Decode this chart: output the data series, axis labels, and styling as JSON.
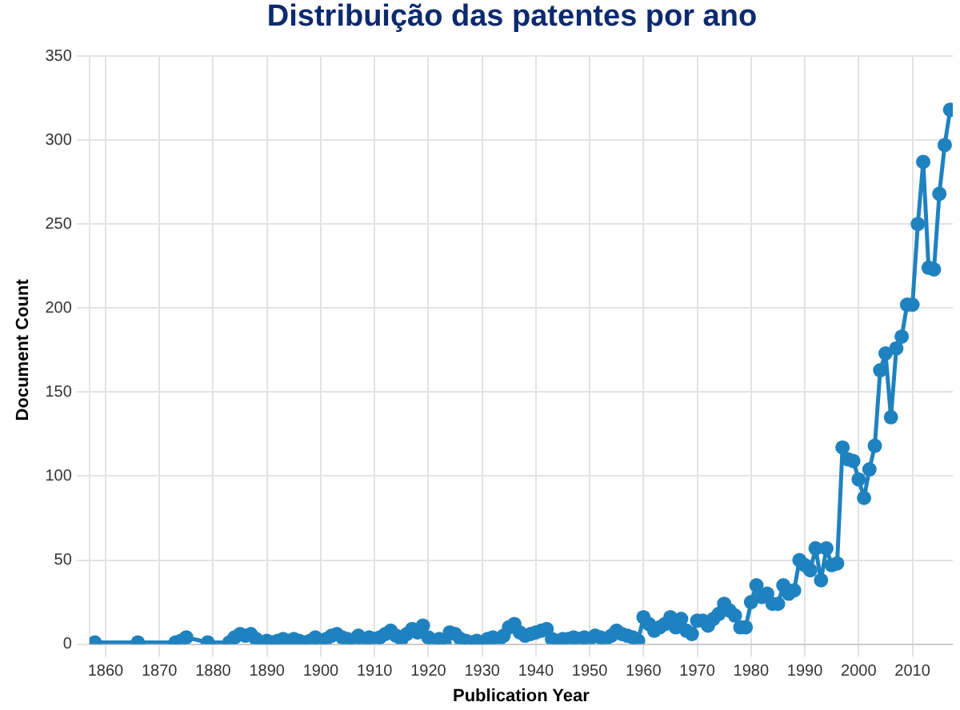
{
  "chart_data": {
    "type": "line",
    "title": "Distribuição das patentes por ano",
    "xlabel": "Publication Year",
    "ylabel": "Document Count",
    "x": [
      1858,
      1866,
      1873,
      1874,
      1875,
      1879,
      1883,
      1884,
      1885,
      1886,
      1887,
      1888,
      1889,
      1890,
      1891,
      1892,
      1893,
      1894,
      1895,
      1896,
      1897,
      1898,
      1899,
      1900,
      1901,
      1902,
      1903,
      1904,
      1905,
      1906,
      1907,
      1908,
      1909,
      1910,
      1911,
      1912,
      1913,
      1914,
      1915,
      1916,
      1917,
      1918,
      1919,
      1920,
      1921,
      1922,
      1923,
      1924,
      1925,
      1926,
      1927,
      1928,
      1929,
      1930,
      1931,
      1932,
      1933,
      1934,
      1935,
      1936,
      1937,
      1938,
      1939,
      1940,
      1941,
      1942,
      1943,
      1944,
      1945,
      1946,
      1947,
      1948,
      1949,
      1950,
      1951,
      1952,
      1953,
      1954,
      1955,
      1956,
      1957,
      1958,
      1959,
      1960,
      1961,
      1962,
      1963,
      1964,
      1965,
      1966,
      1967,
      1968,
      1969,
      1970,
      1971,
      1972,
      1973,
      1974,
      1975,
      1976,
      1977,
      1978,
      1979,
      1980,
      1981,
      1982,
      1983,
      1984,
      1985,
      1986,
      1987,
      1988,
      1989,
      1990,
      1991,
      1992,
      1993,
      1994,
      1995,
      1996,
      1997,
      1998,
      1999,
      2000,
      2001,
      2002,
      2003,
      2004,
      2005,
      2006,
      2007,
      2008,
      2009,
      2010,
      2011,
      2012,
      2013,
      2014,
      2015,
      2016,
      2017
    ],
    "series": [
      {
        "color": "#1f82c0",
        "values": [
          1,
          1,
          1,
          2,
          4,
          1,
          1,
          4,
          6,
          5,
          6,
          3,
          1,
          2,
          1,
          2,
          3,
          2,
          3,
          2,
          1,
          2,
          4,
          2,
          3,
          5,
          6,
          4,
          3,
          2,
          5,
          3,
          4,
          3,
          4,
          6,
          8,
          5,
          3,
          6,
          9,
          7,
          11,
          4,
          2,
          3,
          1,
          7,
          6,
          3,
          2,
          1,
          2,
          1,
          3,
          4,
          2,
          5,
          10,
          12,
          7,
          5,
          6,
          7,
          8,
          9,
          3,
          2,
          3,
          3,
          4,
          3,
          4,
          3,
          5,
          4,
          3,
          5,
          8,
          6,
          5,
          4,
          2,
          16,
          12,
          8,
          10,
          12,
          16,
          10,
          15,
          8,
          6,
          14,
          14,
          11,
          15,
          18,
          24,
          20,
          17,
          10,
          10,
          25,
          35,
          28,
          30,
          24,
          24,
          35,
          30,
          32,
          50,
          47,
          44,
          57,
          38,
          57,
          47,
          48,
          117,
          110,
          109,
          98,
          87,
          104,
          118,
          163,
          173,
          135,
          176,
          183,
          202,
          202,
          250,
          287,
          224,
          223,
          268,
          297,
          318
        ]
      }
    ],
    "xlim": [
      1857,
      2017.5
    ],
    "xticks": [
      1860,
      1870,
      1880,
      1890,
      1900,
      1910,
      1920,
      1930,
      1940,
      1950,
      1960,
      1970,
      1980,
      1990,
      2000,
      2010
    ],
    "ylim": [
      0,
      350
    ],
    "yticks": [
      0,
      50,
      100,
      150,
      200,
      250,
      300,
      350
    ],
    "grid": true,
    "legend": false,
    "marker": "circle",
    "line_style": "solid"
  }
}
